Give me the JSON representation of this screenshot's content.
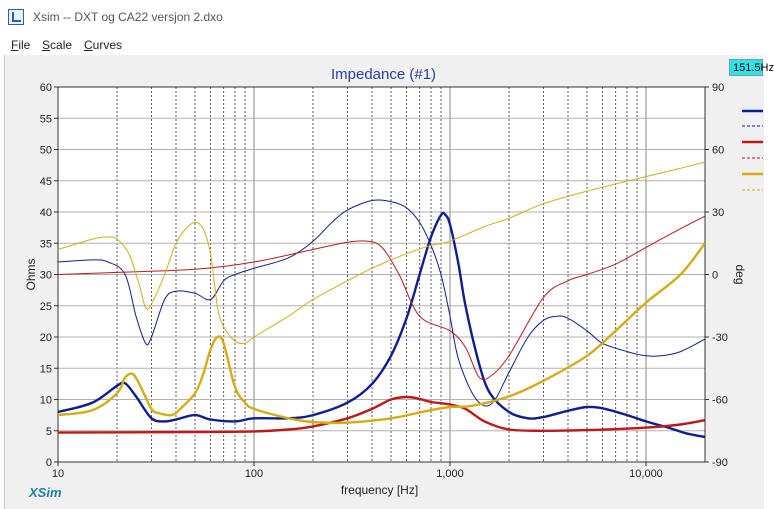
{
  "window": {
    "title": "Xsim -- DXT og CA22 versjon 2.dxo"
  },
  "menu": {
    "file": "File",
    "scale": "Scale",
    "curves": "Curves"
  },
  "cursor_readout": "151.5Hz",
  "brand": "XSim",
  "colors": {
    "navy": "#0d1f8f",
    "red": "#c01818",
    "gold": "#d4ac14",
    "badge": "#33e0ea"
  },
  "chart_data": {
    "type": "line",
    "title": "Impedance (#1)",
    "xlabel": "frequency [Hz]",
    "ylabel": "Ohms",
    "y2label": "deg",
    "xscale": "log",
    "xlim": [
      10,
      20000
    ],
    "ylim": [
      0,
      60
    ],
    "y2lim": [
      -90,
      90
    ],
    "grid": true,
    "legend": "right",
    "x_ticks": [
      "10",
      "100",
      "1,000",
      "10,000"
    ],
    "y_ticks": [
      "0",
      "5",
      "10",
      "15",
      "20",
      "25",
      "30",
      "35",
      "40",
      "45",
      "50",
      "55",
      "60"
    ],
    "y2_ticks": [
      "-90",
      "-60",
      "-30",
      "0",
      "30",
      "60",
      "90"
    ],
    "series": [
      {
        "color": "#0d1f8f",
        "axis": "ohms",
        "style": "thick",
        "points": [
          [
            10,
            8
          ],
          [
            15,
            9.5
          ],
          [
            20,
            12.2
          ],
          [
            22,
            12.6
          ],
          [
            25,
            10.5
          ],
          [
            30,
            7
          ],
          [
            35,
            6.5
          ],
          [
            40,
            6.8
          ],
          [
            50,
            7.5
          ],
          [
            60,
            6.8
          ],
          [
            80,
            6.5
          ],
          [
            100,
            7
          ],
          [
            150,
            7
          ],
          [
            200,
            7.5
          ],
          [
            300,
            9.5
          ],
          [
            400,
            12.5
          ],
          [
            500,
            17
          ],
          [
            600,
            23
          ],
          [
            700,
            30
          ],
          [
            800,
            36
          ],
          [
            900,
            39.5
          ],
          [
            950,
            39.5
          ],
          [
            1000,
            38
          ],
          [
            1100,
            32
          ],
          [
            1200,
            25
          ],
          [
            1400,
            16
          ],
          [
            1600,
            11
          ],
          [
            2000,
            8
          ],
          [
            2500,
            7
          ],
          [
            3000,
            7.2
          ],
          [
            4000,
            8.2
          ],
          [
            5000,
            8.8
          ],
          [
            6000,
            8.6
          ],
          [
            8000,
            7.5
          ],
          [
            10000,
            6.5
          ],
          [
            13000,
            5.5
          ],
          [
            16000,
            4.6
          ],
          [
            20000,
            4
          ]
        ]
      },
      {
        "color": "#0d1f8f",
        "axis": "deg",
        "style": "thin",
        "points": [
          [
            10,
            6
          ],
          [
            15,
            7
          ],
          [
            18,
            6
          ],
          [
            22,
            0
          ],
          [
            25,
            -20
          ],
          [
            28,
            -33
          ],
          [
            30,
            -30
          ],
          [
            35,
            -12
          ],
          [
            40,
            -8
          ],
          [
            50,
            -9
          ],
          [
            60,
            -12
          ],
          [
            70,
            -3
          ],
          [
            80,
            0
          ],
          [
            100,
            3
          ],
          [
            150,
            8
          ],
          [
            200,
            16
          ],
          [
            250,
            25
          ],
          [
            300,
            31
          ],
          [
            400,
            35.5
          ],
          [
            500,
            35
          ],
          [
            600,
            32
          ],
          [
            700,
            25
          ],
          [
            800,
            14
          ],
          [
            900,
            0
          ],
          [
            1000,
            -20
          ],
          [
            1100,
            -40
          ],
          [
            1300,
            -57
          ],
          [
            1500,
            -63
          ],
          [
            1700,
            -60
          ],
          [
            2000,
            -47
          ],
          [
            2500,
            -30
          ],
          [
            3000,
            -22
          ],
          [
            3500,
            -20
          ],
          [
            4000,
            -21
          ],
          [
            5000,
            -27
          ],
          [
            6000,
            -33
          ],
          [
            8000,
            -37
          ],
          [
            10000,
            -39
          ],
          [
            12000,
            -39
          ],
          [
            15000,
            -37
          ],
          [
            20000,
            -31
          ]
        ]
      },
      {
        "color": "#c01818",
        "axis": "ohms",
        "style": "thick",
        "points": [
          [
            10,
            4.7
          ],
          [
            50,
            4.8
          ],
          [
            100,
            4.9
          ],
          [
            150,
            5.2
          ],
          [
            200,
            5.7
          ],
          [
            300,
            7
          ],
          [
            400,
            8.5
          ],
          [
            500,
            10
          ],
          [
            600,
            10.4
          ],
          [
            700,
            10.1
          ],
          [
            800,
            9.6
          ],
          [
            1000,
            9.2
          ],
          [
            1200,
            8.5
          ],
          [
            1500,
            6.5
          ],
          [
            2000,
            5.2
          ],
          [
            3000,
            5
          ],
          [
            5000,
            5.1
          ],
          [
            10000,
            5.5
          ],
          [
            15000,
            6
          ],
          [
            20000,
            6.7
          ]
        ]
      },
      {
        "color": "#c01818",
        "axis": "deg",
        "style": "thin",
        "points": [
          [
            10,
            0
          ],
          [
            20,
            1
          ],
          [
            50,
            2.5
          ],
          [
            100,
            6
          ],
          [
            200,
            12
          ],
          [
            300,
            15.5
          ],
          [
            380,
            16
          ],
          [
            450,
            13
          ],
          [
            550,
            0
          ],
          [
            700,
            -20
          ],
          [
            1000,
            -27
          ],
          [
            1200,
            -35
          ],
          [
            1400,
            -49
          ],
          [
            1600,
            -49
          ],
          [
            2000,
            -39
          ],
          [
            3000,
            -11
          ],
          [
            4000,
            -3
          ],
          [
            5000,
            0
          ],
          [
            7000,
            5
          ],
          [
            10000,
            13
          ],
          [
            15000,
            22
          ],
          [
            20000,
            28
          ]
        ]
      },
      {
        "color": "#d4ac14",
        "axis": "ohms",
        "style": "thick",
        "points": [
          [
            10,
            7.5
          ],
          [
            15,
            8.3
          ],
          [
            20,
            11
          ],
          [
            22,
            13.5
          ],
          [
            24,
            14.1
          ],
          [
            26,
            12.5
          ],
          [
            30,
            8.5
          ],
          [
            33,
            7.8
          ],
          [
            38,
            7.5
          ],
          [
            42,
            8.5
          ],
          [
            50,
            11
          ],
          [
            55,
            14
          ],
          [
            60,
            18
          ],
          [
            65,
            20
          ],
          [
            70,
            19
          ],
          [
            80,
            12
          ],
          [
            90,
            9.5
          ],
          [
            100,
            8.5
          ],
          [
            150,
            7
          ],
          [
            200,
            6.4
          ],
          [
            300,
            6.3
          ],
          [
            500,
            7
          ],
          [
            800,
            8.3
          ],
          [
            1000,
            8.8
          ],
          [
            1300,
            9
          ],
          [
            2000,
            10.5
          ],
          [
            3000,
            13
          ],
          [
            5000,
            17
          ],
          [
            7000,
            21
          ],
          [
            10000,
            25.5
          ],
          [
            15000,
            30
          ],
          [
            20000,
            35
          ]
        ]
      },
      {
        "color": "#d4ac14",
        "axis": "deg",
        "style": "thin",
        "points": [
          [
            10,
            12
          ],
          [
            15,
            17
          ],
          [
            18,
            18
          ],
          [
            20,
            17
          ],
          [
            23,
            10
          ],
          [
            26,
            -5
          ],
          [
            28,
            -16
          ],
          [
            30,
            -14
          ],
          [
            35,
            0
          ],
          [
            40,
            15
          ],
          [
            45,
            22
          ],
          [
            50,
            25
          ],
          [
            55,
            22
          ],
          [
            60,
            10
          ],
          [
            65,
            -15
          ],
          [
            70,
            -25
          ],
          [
            80,
            -32
          ],
          [
            90,
            -33
          ],
          [
            100,
            -30
          ],
          [
            150,
            -20
          ],
          [
            200,
            -12
          ],
          [
            300,
            -3
          ],
          [
            400,
            3
          ],
          [
            600,
            10
          ],
          [
            800,
            14
          ],
          [
            1000,
            16
          ],
          [
            1500,
            23
          ],
          [
            2000,
            27
          ],
          [
            3000,
            34
          ],
          [
            5000,
            40
          ],
          [
            10000,
            47
          ],
          [
            15000,
            51
          ],
          [
            20000,
            54
          ]
        ]
      }
    ]
  }
}
